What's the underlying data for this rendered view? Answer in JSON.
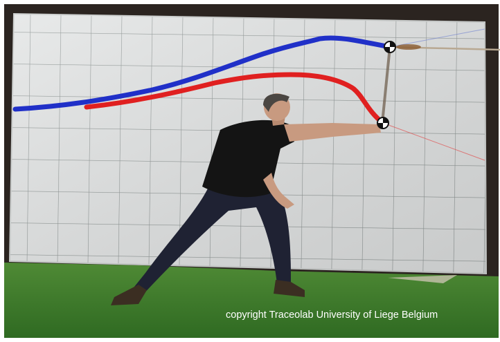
{
  "caption": "copyright Traceolab University of Liege Belgium"
}
